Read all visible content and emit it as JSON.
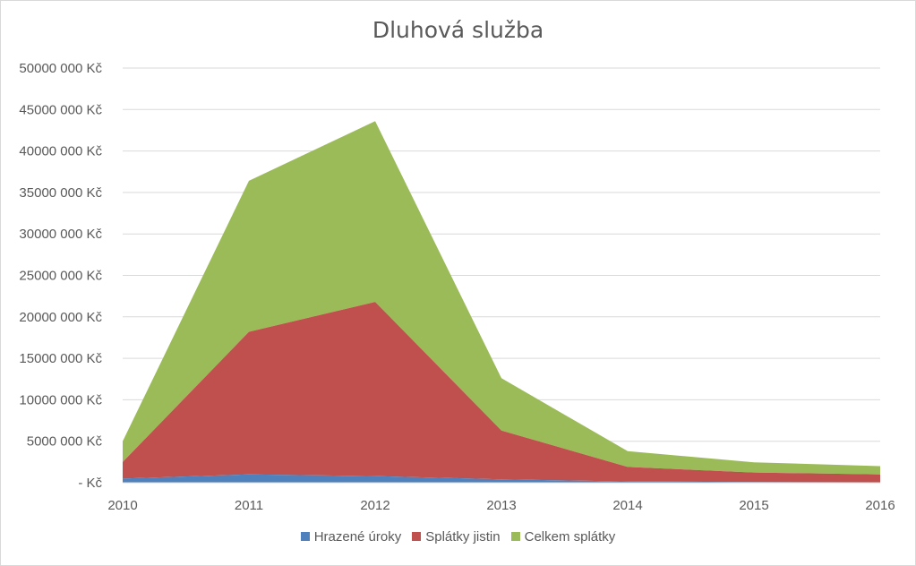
{
  "chart_data": {
    "type": "area",
    "stacked": true,
    "title": "Dluhová služba",
    "xlabel": "",
    "ylabel": "",
    "categories": [
      "2010",
      "2011",
      "2012",
      "2013",
      "2014",
      "2015",
      "2016"
    ],
    "ylim": [
      0,
      50000000
    ],
    "ytick_values": [
      0,
      5000000,
      10000000,
      15000000,
      20000000,
      25000000,
      30000000,
      35000000,
      40000000,
      45000000,
      50000000
    ],
    "ytick_labels": [
      "-   Kč",
      "5000 000 Kč",
      "10000 000 Kč",
      "15000 000 Kč",
      "20000 000 Kč",
      "25000 000 Kč",
      "30000 000 Kč",
      "35000 000 Kč",
      "40000 000 Kč",
      "45000 000 Kč",
      "50000 000 Kč"
    ],
    "grid": true,
    "legend_position": "bottom",
    "series": [
      {
        "name": "Hrazené úroky",
        "color": "#4f81bd",
        "values": [
          500000,
          1000000,
          800000,
          400000,
          150000,
          80000,
          50000
        ]
      },
      {
        "name": "Splátky jistin",
        "color": "#c0504d",
        "values": [
          2000000,
          17200000,
          21000000,
          5900000,
          1750000,
          1150000,
          950000
        ]
      },
      {
        "name": "Celkem splátky",
        "color": "#9bbb59",
        "values": [
          2500000,
          18200000,
          21800000,
          6300000,
          1900000,
          1230000,
          1000000
        ]
      }
    ]
  }
}
